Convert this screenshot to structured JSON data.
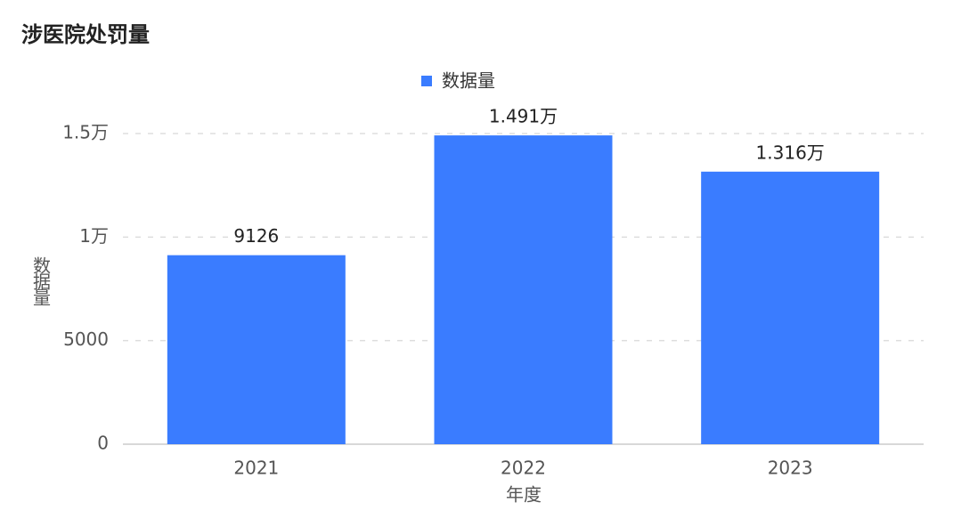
{
  "chart_data": {
    "type": "bar",
    "title": "涉医院处罚量",
    "x_label": "年度",
    "y_label": "数据量",
    "categories": [
      "2021",
      "2022",
      "2023"
    ],
    "series": [
      {
        "name": "数据量",
        "color": "#3a7cff",
        "values": [
          9126,
          14910,
          13160
        ],
        "value_labels": [
          "9126",
          "1.491万",
          "1.316万"
        ]
      }
    ],
    "ylim": [
      0,
      15000
    ],
    "yticks": [
      0,
      5000,
      {
        "value": 10000,
        "label": "1万"
      },
      {
        "value": 15000,
        "label": "1.5万"
      }
    ],
    "grid": true
  }
}
